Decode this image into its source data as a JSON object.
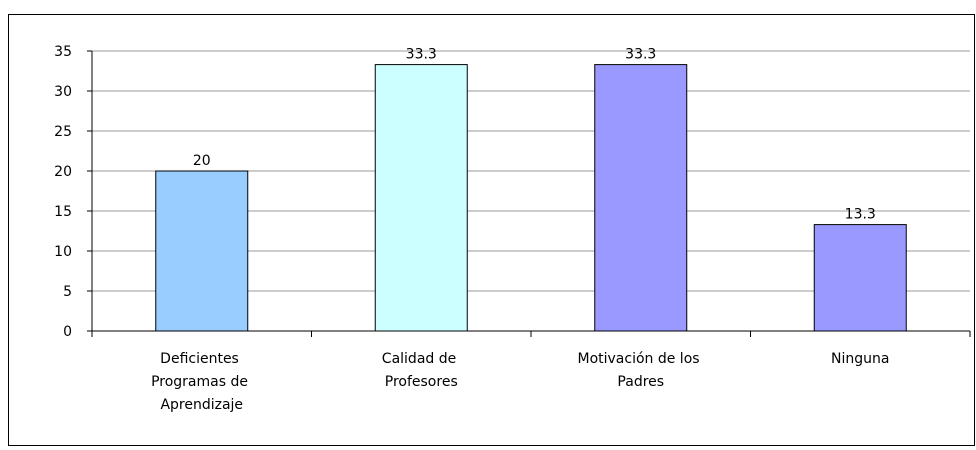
{
  "chart_data": {
    "type": "bar",
    "categories": [
      "Deficientes Programas de Aprendizaje",
      "Calidad de Profesores",
      "Motivación de los Padres",
      "Ninguna"
    ],
    "values": [
      20,
      33.3,
      33.3,
      13.3
    ],
    "colors": [
      "#99ccff",
      "#ccffff",
      "#9999ff",
      "#9999ff"
    ],
    "ylim": [
      0,
      35
    ],
    "yticks": [
      0,
      5,
      10,
      15,
      20,
      25,
      30,
      35
    ],
    "grid": true
  }
}
